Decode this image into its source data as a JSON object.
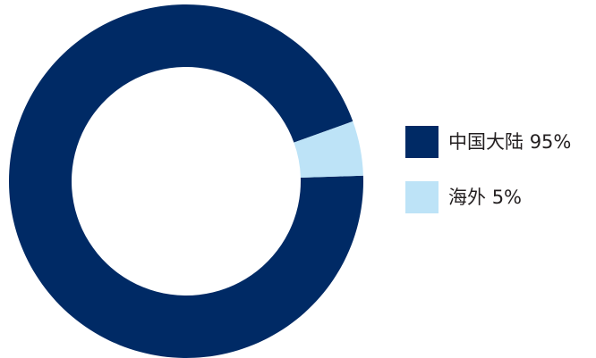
{
  "chart_data": {
    "type": "donut",
    "categories": [
      "中国大陆",
      "海外"
    ],
    "values": [
      95,
      5
    ],
    "value_labels": [
      "95%",
      "5%"
    ],
    "colors": [
      "#002a65",
      "#bde3f7"
    ],
    "legend": "right"
  }
}
